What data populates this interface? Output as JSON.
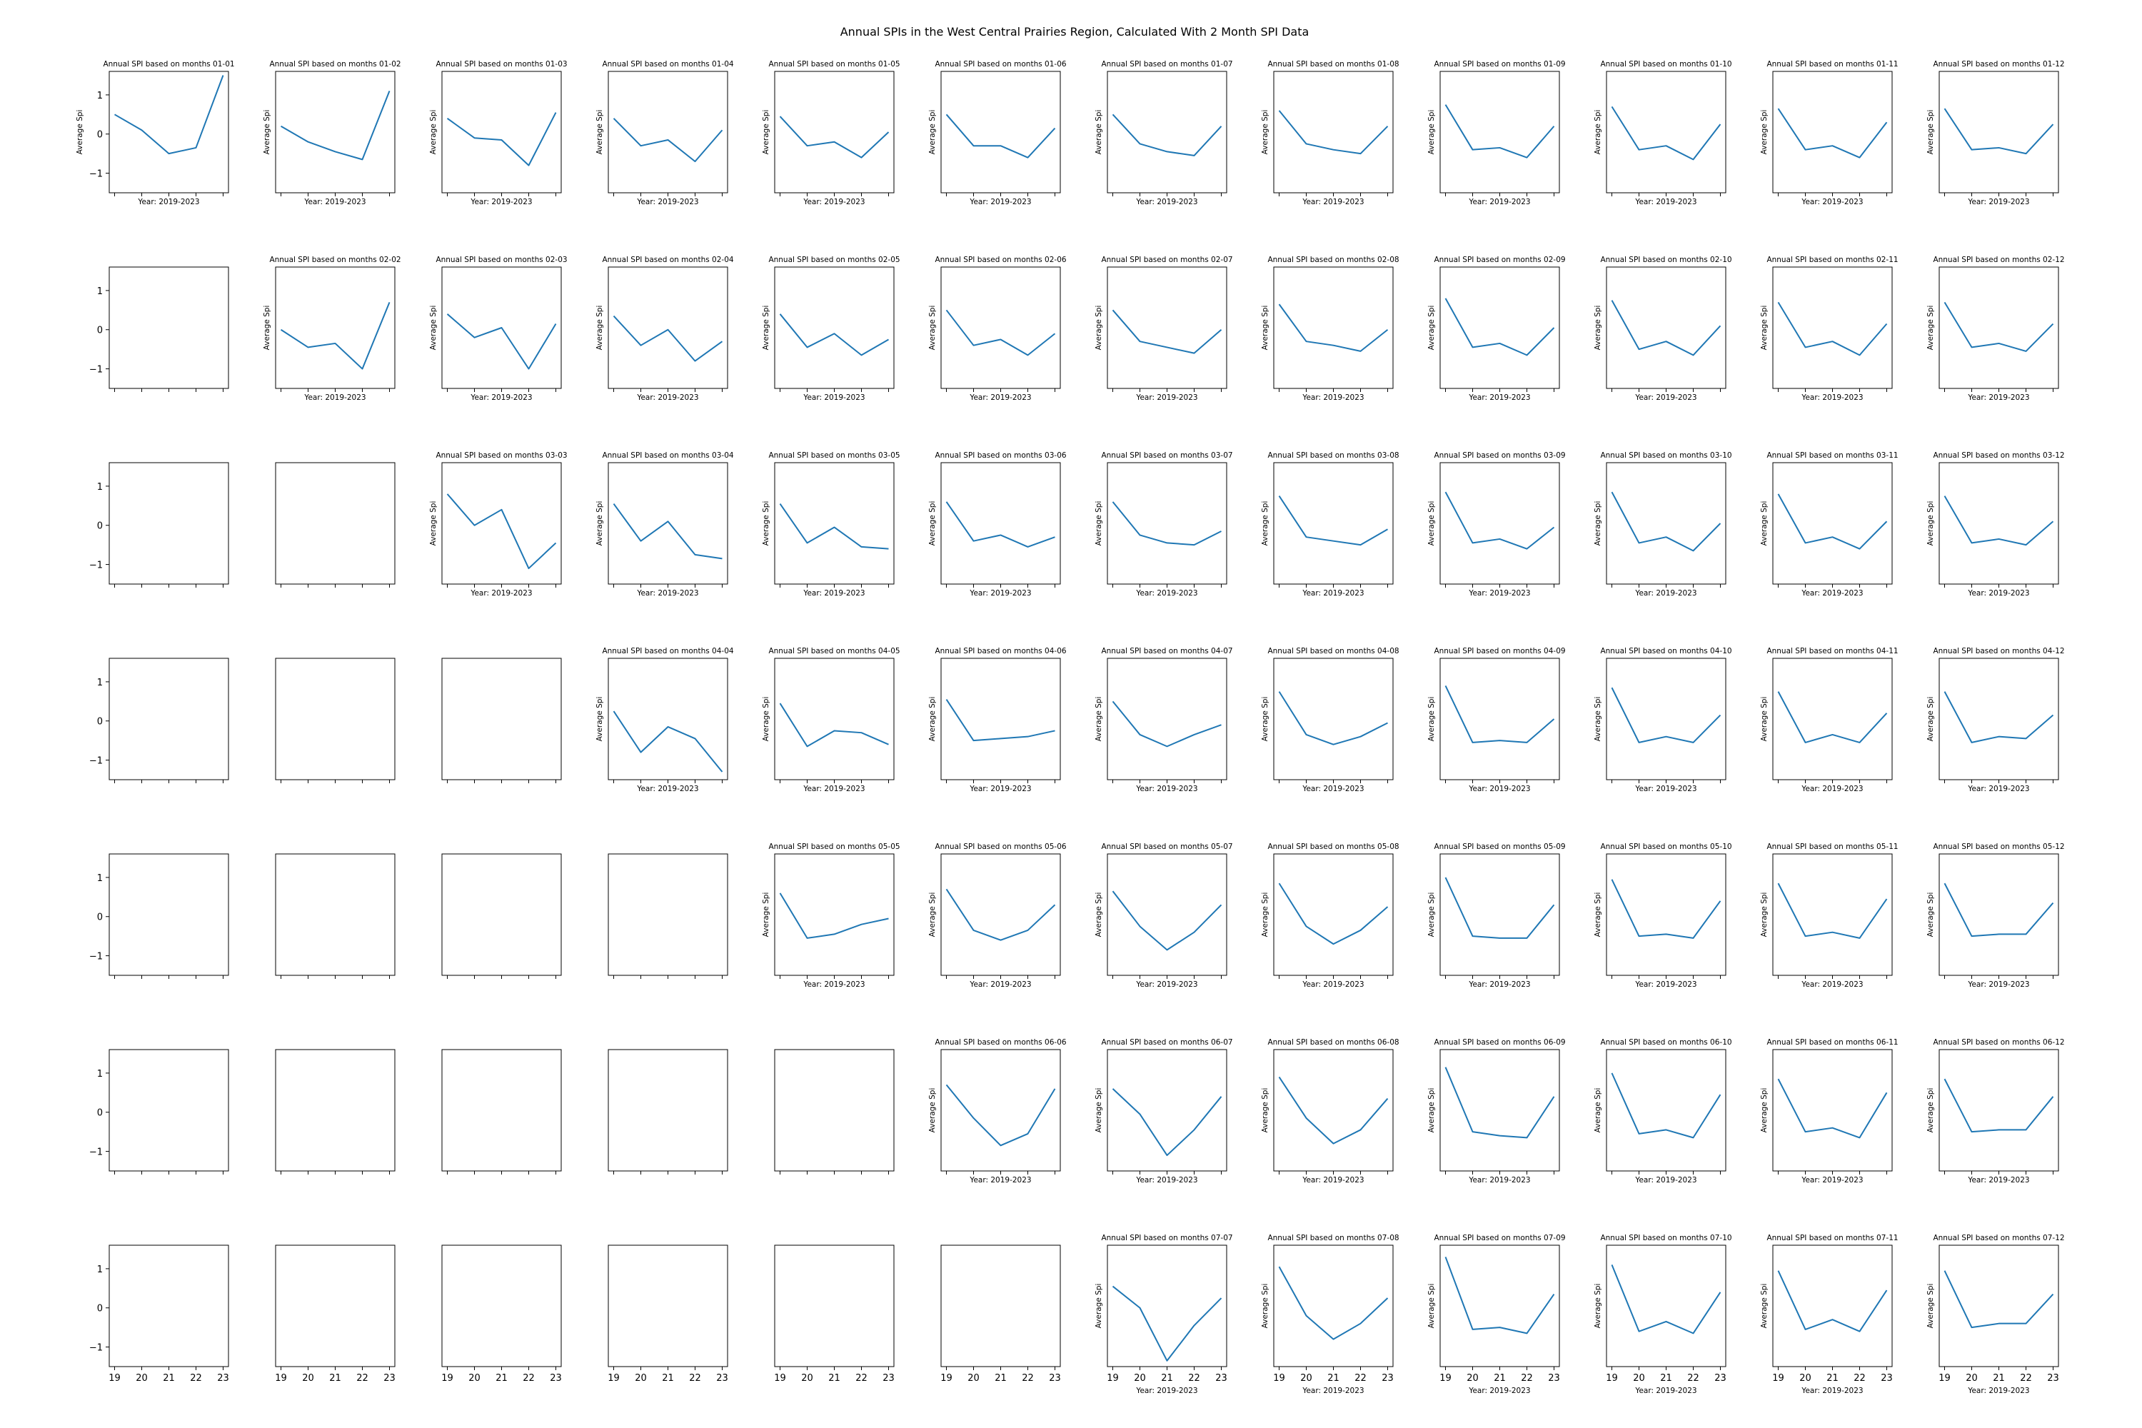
{
  "figure": {
    "suptitle": "Annual SPIs in the West Central Prairies Region, Calculated With 2 Month SPI Data",
    "subplot_title_prefix": "Annual SPI based on months ",
    "xlabel": "Year: 2019-2023",
    "ylabel": "Average Spi",
    "series_color": "#1f77b4",
    "rows": 7,
    "cols": 12
  },
  "chart_data": {
    "type": "line",
    "x": [
      "19",
      "20",
      "21",
      "22",
      "23"
    ],
    "x_tick_labels": [
      "19",
      "20",
      "21",
      "22",
      "23"
    ],
    "y_ticks": [
      -1,
      0,
      1
    ],
    "ylim": [
      -1.5,
      1.6
    ],
    "grid": false,
    "panels": [
      {
        "label": "01-01",
        "row": 0,
        "col": 0,
        "values": [
          0.5,
          0.1,
          -0.5,
          -0.35,
          1.5
        ]
      },
      {
        "label": "01-02",
        "row": 0,
        "col": 1,
        "values": [
          0.2,
          -0.2,
          -0.45,
          -0.65,
          1.1
        ]
      },
      {
        "label": "01-03",
        "row": 0,
        "col": 2,
        "values": [
          0.4,
          -0.1,
          -0.15,
          -0.8,
          0.55
        ]
      },
      {
        "label": "01-04",
        "row": 0,
        "col": 3,
        "values": [
          0.4,
          -0.3,
          -0.15,
          -0.7,
          0.1
        ]
      },
      {
        "label": "01-05",
        "row": 0,
        "col": 4,
        "values": [
          0.45,
          -0.3,
          -0.2,
          -0.6,
          0.05
        ]
      },
      {
        "label": "01-06",
        "row": 0,
        "col": 5,
        "values": [
          0.5,
          -0.3,
          -0.3,
          -0.6,
          0.15
        ]
      },
      {
        "label": "01-07",
        "row": 0,
        "col": 6,
        "values": [
          0.5,
          -0.25,
          -0.45,
          -0.55,
          0.2
        ]
      },
      {
        "label": "01-08",
        "row": 0,
        "col": 7,
        "values": [
          0.6,
          -0.25,
          -0.4,
          -0.5,
          0.2
        ]
      },
      {
        "label": "01-09",
        "row": 0,
        "col": 8,
        "values": [
          0.75,
          -0.4,
          -0.35,
          -0.6,
          0.2
        ]
      },
      {
        "label": "01-10",
        "row": 0,
        "col": 9,
        "values": [
          0.7,
          -0.4,
          -0.3,
          -0.65,
          0.25
        ]
      },
      {
        "label": "01-11",
        "row": 0,
        "col": 10,
        "values": [
          0.65,
          -0.4,
          -0.3,
          -0.6,
          0.3
        ]
      },
      {
        "label": "01-12",
        "row": 0,
        "col": 11,
        "values": [
          0.65,
          -0.4,
          -0.35,
          -0.5,
          0.25
        ]
      },
      {
        "label": "02-02",
        "row": 1,
        "col": 1,
        "values": [
          0.0,
          -0.45,
          -0.35,
          -1.0,
          0.7
        ]
      },
      {
        "label": "02-03",
        "row": 1,
        "col": 2,
        "values": [
          0.4,
          -0.2,
          0.05,
          -1.0,
          0.15
        ]
      },
      {
        "label": "02-04",
        "row": 1,
        "col": 3,
        "values": [
          0.35,
          -0.4,
          0.0,
          -0.8,
          -0.3
        ]
      },
      {
        "label": "02-05",
        "row": 1,
        "col": 4,
        "values": [
          0.4,
          -0.45,
          -0.1,
          -0.65,
          -0.25
        ]
      },
      {
        "label": "02-06",
        "row": 1,
        "col": 5,
        "values": [
          0.5,
          -0.4,
          -0.25,
          -0.65,
          -0.1
        ]
      },
      {
        "label": "02-07",
        "row": 1,
        "col": 6,
        "values": [
          0.5,
          -0.3,
          -0.45,
          -0.6,
          0.0
        ]
      },
      {
        "label": "02-08",
        "row": 1,
        "col": 7,
        "values": [
          0.65,
          -0.3,
          -0.4,
          -0.55,
          0.0
        ]
      },
      {
        "label": "02-09",
        "row": 1,
        "col": 8,
        "values": [
          0.8,
          -0.45,
          -0.35,
          -0.65,
          0.05
        ]
      },
      {
        "label": "02-10",
        "row": 1,
        "col": 9,
        "values": [
          0.75,
          -0.5,
          -0.3,
          -0.65,
          0.1
        ]
      },
      {
        "label": "02-11",
        "row": 1,
        "col": 10,
        "values": [
          0.7,
          -0.45,
          -0.3,
          -0.65,
          0.15
        ]
      },
      {
        "label": "02-12",
        "row": 1,
        "col": 11,
        "values": [
          0.7,
          -0.45,
          -0.35,
          -0.55,
          0.15
        ]
      },
      {
        "label": "03-03",
        "row": 2,
        "col": 2,
        "values": [
          0.8,
          0.0,
          0.4,
          -1.1,
          -0.45
        ]
      },
      {
        "label": "03-04",
        "row": 2,
        "col": 3,
        "values": [
          0.55,
          -0.4,
          0.1,
          -0.75,
          -0.85
        ]
      },
      {
        "label": "03-05",
        "row": 2,
        "col": 4,
        "values": [
          0.55,
          -0.45,
          -0.05,
          -0.55,
          -0.6
        ]
      },
      {
        "label": "03-06",
        "row": 2,
        "col": 5,
        "values": [
          0.6,
          -0.4,
          -0.25,
          -0.55,
          -0.3
        ]
      },
      {
        "label": "03-07",
        "row": 2,
        "col": 6,
        "values": [
          0.6,
          -0.25,
          -0.45,
          -0.5,
          -0.15
        ]
      },
      {
        "label": "03-08",
        "row": 2,
        "col": 7,
        "values": [
          0.75,
          -0.3,
          -0.4,
          -0.5,
          -0.1
        ]
      },
      {
        "label": "03-09",
        "row": 2,
        "col": 8,
        "values": [
          0.85,
          -0.45,
          -0.35,
          -0.6,
          -0.05
        ]
      },
      {
        "label": "03-10",
        "row": 2,
        "col": 9,
        "values": [
          0.85,
          -0.45,
          -0.3,
          -0.65,
          0.05
        ]
      },
      {
        "label": "03-11",
        "row": 2,
        "col": 10,
        "values": [
          0.8,
          -0.45,
          -0.3,
          -0.6,
          0.1
        ]
      },
      {
        "label": "03-12",
        "row": 2,
        "col": 11,
        "values": [
          0.75,
          -0.45,
          -0.35,
          -0.5,
          0.1
        ]
      },
      {
        "label": "04-04",
        "row": 3,
        "col": 3,
        "values": [
          0.25,
          -0.8,
          -0.15,
          -0.45,
          -1.3
        ]
      },
      {
        "label": "04-05",
        "row": 3,
        "col": 4,
        "values": [
          0.45,
          -0.65,
          -0.25,
          -0.3,
          -0.6
        ]
      },
      {
        "label": "04-06",
        "row": 3,
        "col": 5,
        "values": [
          0.55,
          -0.5,
          -0.45,
          -0.4,
          -0.25
        ]
      },
      {
        "label": "04-07",
        "row": 3,
        "col": 6,
        "values": [
          0.5,
          -0.35,
          -0.65,
          -0.35,
          -0.1
        ]
      },
      {
        "label": "04-08",
        "row": 3,
        "col": 7,
        "values": [
          0.75,
          -0.35,
          -0.6,
          -0.4,
          -0.05
        ]
      },
      {
        "label": "04-09",
        "row": 3,
        "col": 8,
        "values": [
          0.9,
          -0.55,
          -0.5,
          -0.55,
          0.05
        ]
      },
      {
        "label": "04-10",
        "row": 3,
        "col": 9,
        "values": [
          0.85,
          -0.55,
          -0.4,
          -0.55,
          0.15
        ]
      },
      {
        "label": "04-11",
        "row": 3,
        "col": 10,
        "values": [
          0.75,
          -0.55,
          -0.35,
          -0.55,
          0.2
        ]
      },
      {
        "label": "04-12",
        "row": 3,
        "col": 11,
        "values": [
          0.75,
          -0.55,
          -0.4,
          -0.45,
          0.15
        ]
      },
      {
        "label": "05-05",
        "row": 4,
        "col": 4,
        "values": [
          0.6,
          -0.55,
          -0.45,
          -0.2,
          -0.05
        ]
      },
      {
        "label": "05-06",
        "row": 4,
        "col": 5,
        "values": [
          0.7,
          -0.35,
          -0.6,
          -0.35,
          0.3
        ]
      },
      {
        "label": "05-07",
        "row": 4,
        "col": 6,
        "values": [
          0.65,
          -0.25,
          -0.85,
          -0.4,
          0.3
        ]
      },
      {
        "label": "05-08",
        "row": 4,
        "col": 7,
        "values": [
          0.85,
          -0.25,
          -0.7,
          -0.35,
          0.25
        ]
      },
      {
        "label": "05-09",
        "row": 4,
        "col": 8,
        "values": [
          1.0,
          -0.5,
          -0.55,
          -0.55,
          0.3
        ]
      },
      {
        "label": "05-10",
        "row": 4,
        "col": 9,
        "values": [
          0.95,
          -0.5,
          -0.45,
          -0.55,
          0.4
        ]
      },
      {
        "label": "05-11",
        "row": 4,
        "col": 10,
        "values": [
          0.85,
          -0.5,
          -0.4,
          -0.55,
          0.45
        ]
      },
      {
        "label": "05-12",
        "row": 4,
        "col": 11,
        "values": [
          0.85,
          -0.5,
          -0.45,
          -0.45,
          0.35
        ]
      },
      {
        "label": "06-06",
        "row": 5,
        "col": 5,
        "values": [
          0.7,
          -0.15,
          -0.85,
          -0.55,
          0.6
        ]
      },
      {
        "label": "06-07",
        "row": 5,
        "col": 6,
        "values": [
          0.6,
          -0.05,
          -1.1,
          -0.45,
          0.4
        ]
      },
      {
        "label": "06-08",
        "row": 5,
        "col": 7,
        "values": [
          0.9,
          -0.15,
          -0.8,
          -0.45,
          0.35
        ]
      },
      {
        "label": "06-09",
        "row": 5,
        "col": 8,
        "values": [
          1.15,
          -0.5,
          -0.6,
          -0.65,
          0.4
        ]
      },
      {
        "label": "06-10",
        "row": 5,
        "col": 9,
        "values": [
          1.0,
          -0.55,
          -0.45,
          -0.65,
          0.45
        ]
      },
      {
        "label": "06-11",
        "row": 5,
        "col": 10,
        "values": [
          0.85,
          -0.5,
          -0.4,
          -0.65,
          0.5
        ]
      },
      {
        "label": "06-12",
        "row": 5,
        "col": 11,
        "values": [
          0.85,
          -0.5,
          -0.45,
          -0.45,
          0.4
        ]
      },
      {
        "label": "07-07",
        "row": 6,
        "col": 6,
        "values": [
          0.55,
          0.0,
          -1.35,
          -0.45,
          0.25
        ]
      },
      {
        "label": "07-08",
        "row": 6,
        "col": 7,
        "values": [
          1.05,
          -0.2,
          -0.8,
          -0.4,
          0.25
        ]
      },
      {
        "label": "07-09",
        "row": 6,
        "col": 8,
        "values": [
          1.3,
          -0.55,
          -0.5,
          -0.65,
          0.35
        ]
      },
      {
        "label": "07-10",
        "row": 6,
        "col": 9,
        "values": [
          1.1,
          -0.6,
          -0.35,
          -0.65,
          0.4
        ]
      },
      {
        "label": "07-11",
        "row": 6,
        "col": 10,
        "values": [
          0.95,
          -0.55,
          -0.3,
          -0.6,
          0.45
        ]
      },
      {
        "label": "07-12",
        "row": 6,
        "col": 11,
        "values": [
          0.95,
          -0.5,
          -0.4,
          -0.4,
          0.35
        ]
      }
    ]
  }
}
